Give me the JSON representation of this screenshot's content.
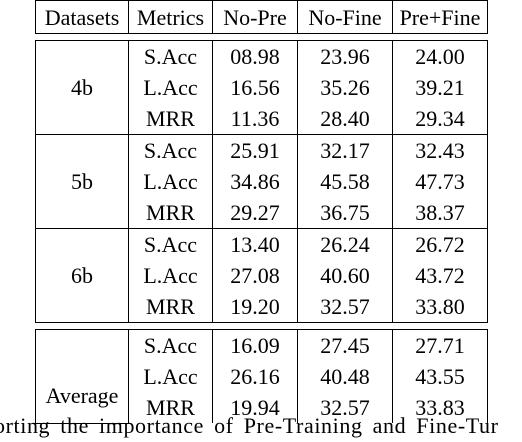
{
  "table": {
    "headers": [
      "Datasets",
      "Metrics",
      "No-Pre",
      "No-Fine",
      "Pre+Fine"
    ],
    "groups": [
      {
        "dataset": "4b",
        "rows": [
          {
            "metric": "S.Acc",
            "no_pre": "08.98",
            "no_fine": "23.96",
            "pre_fine": "24.00"
          },
          {
            "metric": "L.Acc",
            "no_pre": "16.56",
            "no_fine": "35.26",
            "pre_fine": "39.21"
          },
          {
            "metric": "MRR",
            "no_pre": "11.36",
            "no_fine": "28.40",
            "pre_fine": "29.34"
          }
        ]
      },
      {
        "dataset": "5b",
        "rows": [
          {
            "metric": "S.Acc",
            "no_pre": "25.91",
            "no_fine": "32.17",
            "pre_fine": "32.43"
          },
          {
            "metric": "L.Acc",
            "no_pre": "34.86",
            "no_fine": "45.58",
            "pre_fine": "47.73"
          },
          {
            "metric": "MRR",
            "no_pre": "29.27",
            "no_fine": "36.75",
            "pre_fine": "38.37"
          }
        ]
      },
      {
        "dataset": "6b",
        "rows": [
          {
            "metric": "S.Acc",
            "no_pre": "13.40",
            "no_fine": "26.24",
            "pre_fine": "26.72"
          },
          {
            "metric": "L.Acc",
            "no_pre": "27.08",
            "no_fine": "40.60",
            "pre_fine": "43.72"
          },
          {
            "metric": "MRR",
            "no_pre": "19.20",
            "no_fine": "32.57",
            "pre_fine": "33.80"
          }
        ]
      },
      {
        "dataset": "Average",
        "rows": [
          {
            "metric": "S.Acc",
            "no_pre": "16.09",
            "no_fine": "27.45",
            "pre_fine": "27.71"
          },
          {
            "metric": "L.Acc",
            "no_pre": "26.16",
            "no_fine": "40.48",
            "pre_fine": "43.55"
          },
          {
            "metric": "MRR",
            "no_pre": "19.94",
            "no_fine": "32.57",
            "pre_fine": "33.83"
          }
        ]
      }
    ]
  },
  "caption": "orting the importance of Pre-Training and Fine-Tur"
}
